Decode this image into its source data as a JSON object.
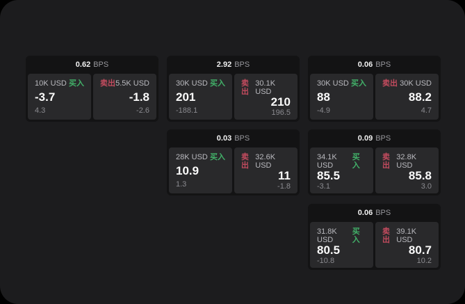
{
  "labels": {
    "bps_unit": "BPS",
    "buy": "买入",
    "sell": "卖出"
  },
  "colors": {
    "page_background": "#1c1c1e",
    "outer_background": "#000000",
    "card_background": "#131314",
    "panel_background": "#29292b",
    "buy_accent": "#42b169",
    "sell_accent": "#c24b5e"
  },
  "cards": [
    {
      "bps": "0.62",
      "buy": {
        "amount": "10K USD",
        "price": "-3.7",
        "delta": "4.3"
      },
      "sell": {
        "amount": "5.5K USD",
        "price": "-1.8",
        "delta": "-2.6"
      }
    },
    {
      "bps": "2.92",
      "buy": {
        "amount": "30K USD",
        "price": "201",
        "delta": "-188.1"
      },
      "sell": {
        "amount": "30.1K USD",
        "price": "210",
        "delta": "196.5"
      }
    },
    {
      "bps": "0.06",
      "buy": {
        "amount": "30K USD",
        "price": "88",
        "delta": "-4.9"
      },
      "sell": {
        "amount": "30K USD",
        "price": "88.2",
        "delta": "4.7"
      }
    },
    {
      "bps": "0.03",
      "buy": {
        "amount": "28K USD",
        "price": "10.9",
        "delta": "1.3"
      },
      "sell": {
        "amount": "32.6K USD",
        "price": "11",
        "delta": "-1.8"
      }
    },
    {
      "bps": "0.09",
      "buy": {
        "amount": "34.1K USD",
        "price": "85.5",
        "delta": "-3.1"
      },
      "sell": {
        "amount": "32.8K USD",
        "price": "85.8",
        "delta": "3.0"
      }
    },
    {
      "bps": "0.06",
      "buy": {
        "amount": "31.8K USD",
        "price": "80.5",
        "delta": "-10.8"
      },
      "sell": {
        "amount": "39.1K USD",
        "price": "80.7",
        "delta": "10.2"
      }
    }
  ]
}
